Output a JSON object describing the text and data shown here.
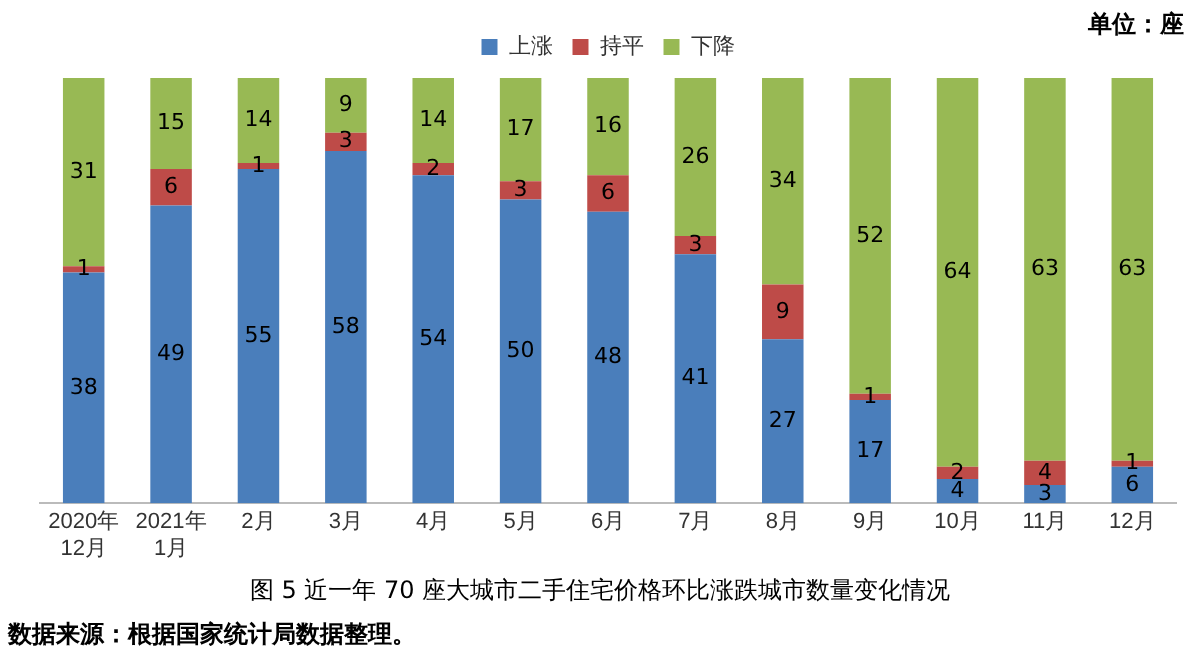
{
  "chart_data": {
    "type": "bar",
    "stacked": true,
    "title": "图 5 近一年 70 座大城市二手住宅价格环比涨跌城市数量变化情况",
    "annotations": [
      "单位：座",
      "数据来源：根据国家统计局数据整理。"
    ],
    "categories": [
      "2020年\n12月",
      "2021年\n1月",
      "2月",
      "3月",
      "4月",
      "5月",
      "6月",
      "7月",
      "8月",
      "9月",
      "10月",
      "11月",
      "12月"
    ],
    "series": [
      {
        "name": "上涨",
        "color": "#4a7ebb",
        "values": [
          38,
          49,
          55,
          58,
          54,
          50,
          48,
          41,
          27,
          17,
          4,
          3,
          6
        ]
      },
      {
        "name": "持平",
        "color": "#be4b48",
        "values": [
          1,
          6,
          1,
          3,
          2,
          3,
          6,
          3,
          9,
          1,
          2,
          4,
          1
        ]
      },
      {
        "name": "下降",
        "color": "#98b954",
        "values": [
          31,
          15,
          14,
          9,
          14,
          17,
          16,
          26,
          34,
          52,
          64,
          63,
          63
        ]
      }
    ],
    "data_labels": true,
    "legend": "top",
    "grid": false
  }
}
